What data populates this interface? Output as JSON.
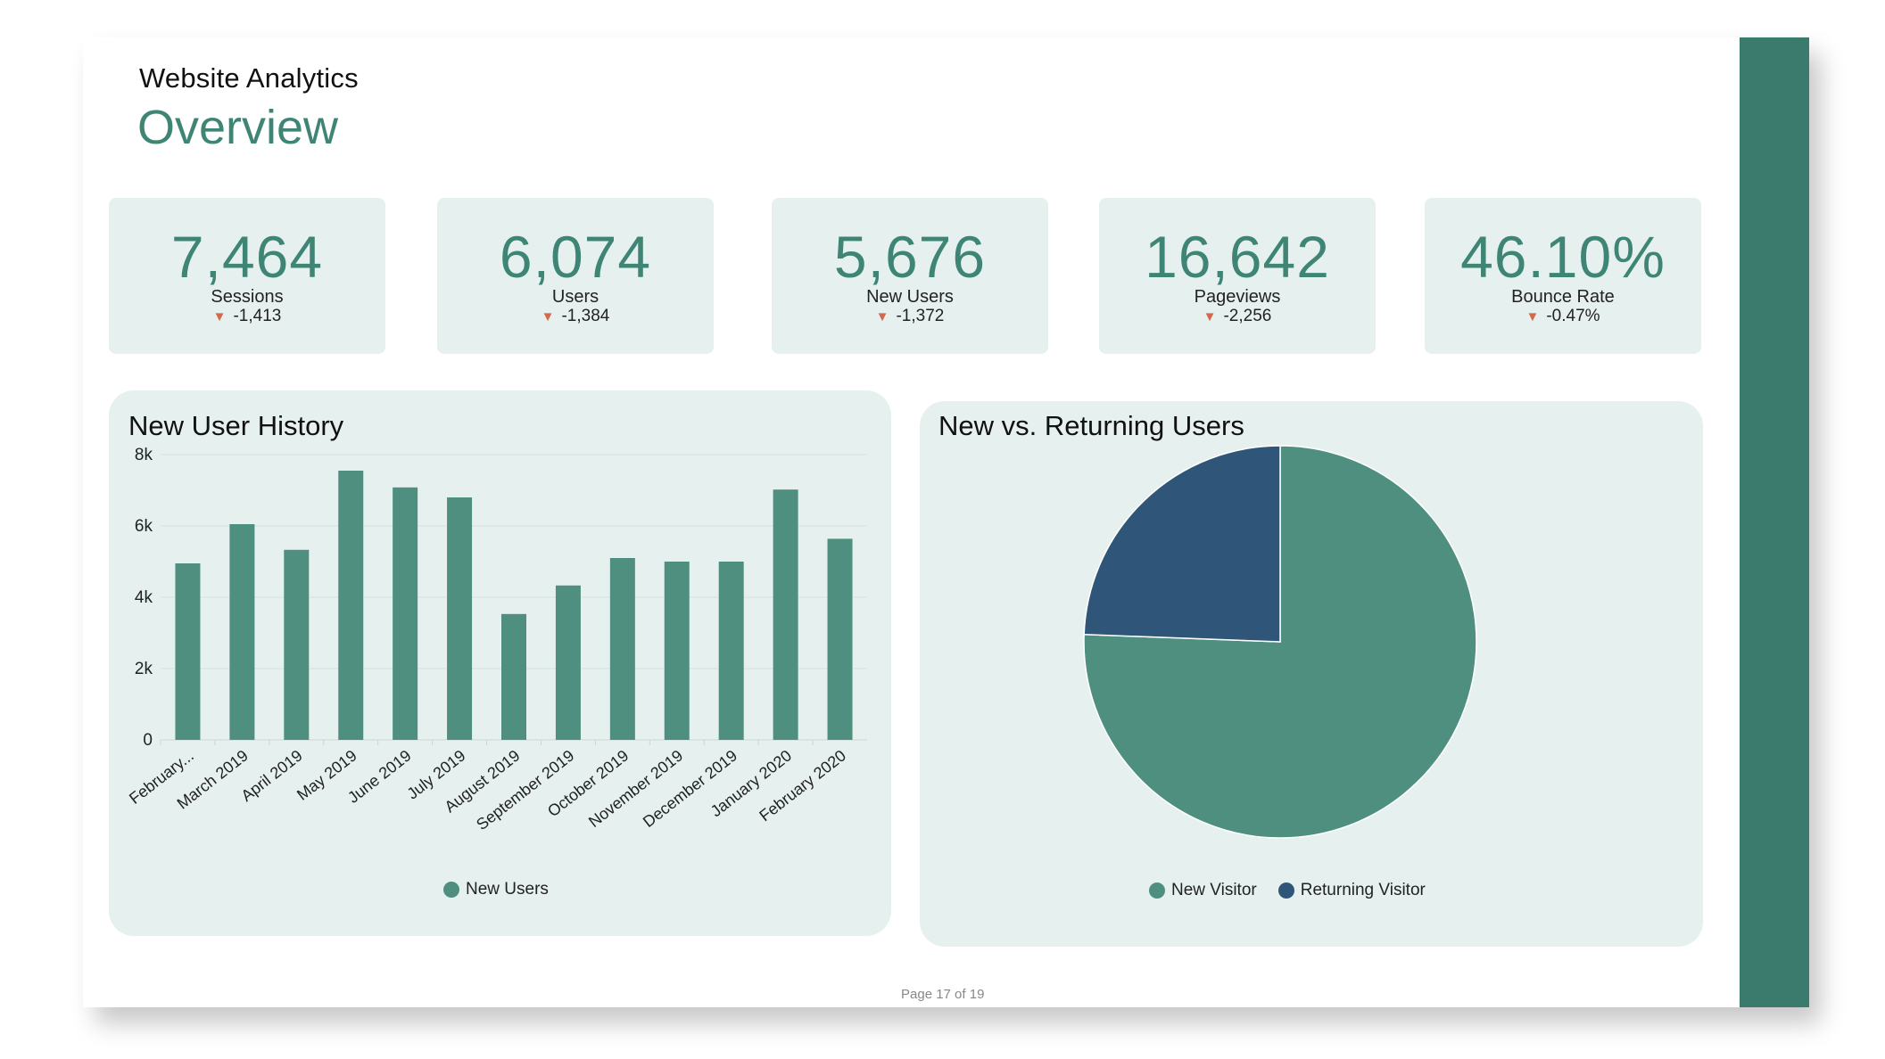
{
  "header": {
    "subtitle": "Website Analytics",
    "title": "Overview"
  },
  "kpis": [
    {
      "value": "7,464",
      "label": "Sessions",
      "delta": "-1,413"
    },
    {
      "value": "6,074",
      "label": "Users",
      "delta": "-1,384"
    },
    {
      "value": "5,676",
      "label": "New Users",
      "delta": "-1,372"
    },
    {
      "value": "16,642",
      "label": "Pageviews",
      "delta": "-2,256"
    },
    {
      "value": "46.10%",
      "label": "Bounce Rate",
      "delta": "-0.47%"
    }
  ],
  "colors": {
    "accent": "#3e8575",
    "bar": "#4e8f80",
    "pie_new": "#4e8f80",
    "pie_returning": "#2f5578",
    "panel_bg": "#e6f1ef",
    "side_bar": "#3a7b6d",
    "delta_down": "#d2694f"
  },
  "chart_data": [
    {
      "type": "bar",
      "title": "New User History",
      "categories": [
        "February...",
        "March 2019",
        "April 2019",
        "May 2019",
        "June 2019",
        "July 2019",
        "August 2019",
        "September 2019",
        "October 2019",
        "November 2019",
        "December 2019",
        "January 2020",
        "February 2020"
      ],
      "series": [
        {
          "name": "New Users",
          "values": [
            4950,
            6050,
            5330,
            7550,
            7080,
            6800,
            3530,
            4330,
            5100,
            5000,
            5000,
            7020,
            5640
          ]
        }
      ],
      "yticks": [
        "0",
        "2k",
        "4k",
        "6k",
        "8k"
      ],
      "ylim": [
        0,
        8000
      ],
      "grid": true,
      "legend": "bottom"
    },
    {
      "type": "pie",
      "title": "New vs. Returning Users",
      "labels": [
        "New Visitor",
        "Returning Visitor"
      ],
      "values": [
        75.6,
        24.4
      ],
      "legend": "bottom"
    }
  ],
  "footer": {
    "page": "Page 17 of 19"
  }
}
